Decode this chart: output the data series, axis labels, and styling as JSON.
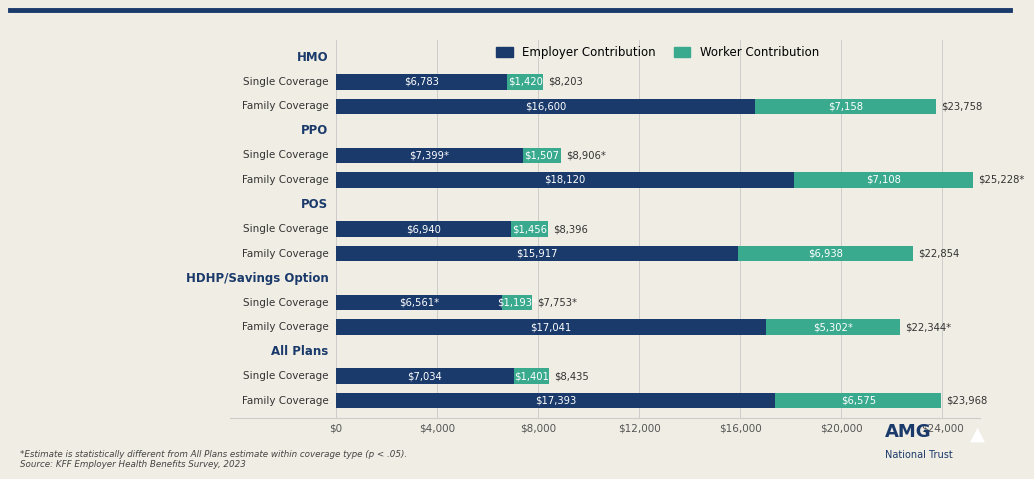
{
  "background_color": "#f0ede4",
  "employer_color": "#1a3a6b",
  "worker_color": "#3aaa8f",
  "employer_values": [
    6783,
    16600,
    7399,
    18120,
    6940,
    15917,
    6561,
    17041,
    7034,
    17393
  ],
  "worker_values": [
    1420,
    7158,
    1507,
    7108,
    1456,
    6938,
    1193,
    5302,
    1401,
    6575
  ],
  "employer_labels": [
    "$6,783",
    "$16,600",
    "$7,399*",
    "$18,120",
    "$6,940",
    "$15,917",
    "$6,561*",
    "$17,041",
    "$7,034",
    "$17,393"
  ],
  "worker_labels": [
    "$1,420",
    "$7,158",
    "$1,507",
    "$7,108",
    "$1,456",
    "$6,938",
    "$1,193*",
    "$5,302*",
    "$1,401",
    "$6,575"
  ],
  "total_labels": [
    "$8,203",
    "$23,758",
    "$8,906*",
    "$25,228*",
    "$8,396",
    "$22,854",
    "$7,753*",
    "$22,344*",
    "$8,435",
    "$23,968"
  ],
  "xticks": [
    0,
    4000,
    8000,
    12000,
    16000,
    20000,
    24000
  ],
  "xtick_labels": [
    "$0",
    "$4,000",
    "$8,000",
    "$12,000",
    "$16,000",
    "$20,000",
    "$24,000"
  ],
  "xlim_right": 25500,
  "footnote": "*Estimate is statistically different from All Plans estimate within coverage type (p < .05).\nSource: KFF Employer Health Benefits Survey, 2023",
  "legend_employer": "Employer Contribution",
  "legend_worker": "Worker Contribution",
  "bar_height": 0.62,
  "group_header_color": "#1a3a6b",
  "row_label_color": "#333333",
  "total_label_color": "#333333",
  "border_color": "#1a3a6b",
  "grid_color": "#cccccc",
  "amg_color": "#1a3a6b"
}
